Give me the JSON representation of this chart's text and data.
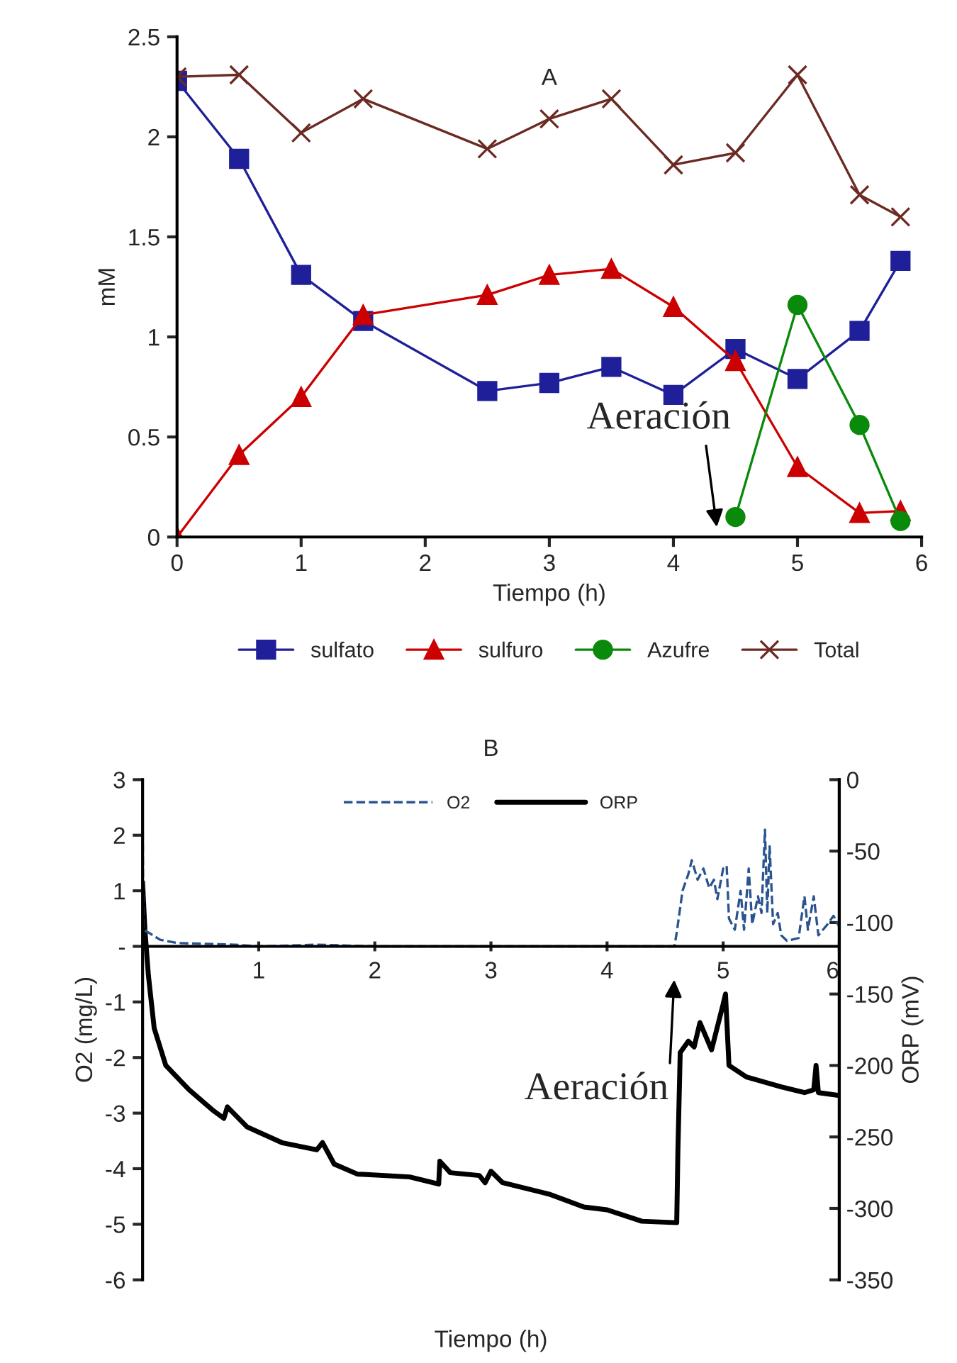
{
  "chart_data": [
    {
      "type": "line",
      "title": "A",
      "xlabel": "Tiempo (h)",
      "ylabel": "mM",
      "xlim": [
        0,
        6
      ],
      "xticks": [
        0,
        1,
        2,
        3,
        4,
        5,
        6
      ],
      "ylim": [
        0,
        2.5
      ],
      "yticks": [
        0,
        0.5,
        1,
        1.5,
        2,
        2.5
      ],
      "grid": false,
      "legend": "bottom",
      "series": [
        {
          "name": "sulfato",
          "color": "#1f1f99",
          "marker": "square",
          "x": [
            0,
            0.5,
            1,
            1.5,
            2.5,
            3,
            3.5,
            4,
            4.5,
            5,
            5.5,
            5.83
          ],
          "values": [
            2.28,
            1.89,
            1.31,
            1.08,
            0.73,
            0.77,
            0.85,
            0.71,
            0.94,
            0.79,
            1.03,
            1.38
          ]
        },
        {
          "name": "sulfuro",
          "color": "#cc0000",
          "marker": "triangle",
          "x": [
            0,
            0.5,
            1,
            1.5,
            2.5,
            3,
            3.5,
            4,
            4.5,
            5,
            5.5,
            5.83
          ],
          "values": [
            0,
            0.41,
            0.7,
            1.11,
            1.21,
            1.31,
            1.34,
            1.15,
            0.88,
            0.35,
            0.12,
            0.13
          ]
        },
        {
          "name": "Azufre",
          "color": "#0a8a0a",
          "marker": "circle",
          "x": [
            4.5,
            5,
            5.5,
            5.83
          ],
          "values": [
            0.1,
            1.16,
            0.56,
            0.08
          ]
        },
        {
          "name": "Total",
          "color": "#6b2a22",
          "marker": "cross",
          "x": [
            0,
            0.5,
            1,
            1.5,
            2.5,
            3,
            3.5,
            4,
            4.5,
            5,
            5.5,
            5.83
          ],
          "values": [
            2.3,
            2.31,
            2.02,
            2.19,
            1.94,
            2.09,
            2.19,
            1.86,
            1.92,
            2.31,
            1.71,
            1.6
          ]
        }
      ],
      "annotations": [
        "Aeración"
      ]
    },
    {
      "type": "line",
      "title": "B",
      "xlabel": "Tiempo (h)",
      "ylabel": "O2 (mg/L)",
      "y2label": "ORP (mV)",
      "xlim": [
        0,
        6
      ],
      "xticks": [
        1,
        2,
        3,
        4,
        5,
        6
      ],
      "ylim": [
        -6,
        3
      ],
      "yticks": [
        -6,
        -5,
        -4,
        -3,
        -2,
        -1,
        {
          "value": 0,
          "label": "-"
        },
        1,
        2,
        3
      ],
      "y2lim": [
        -350,
        0
      ],
      "y2ticks": [
        -350,
        -300,
        -250,
        -200,
        -150,
        -100,
        -50,
        0
      ],
      "grid": false,
      "legend": "top",
      "series": [
        {
          "name": "O2",
          "color": "#2a5490",
          "line_style": "dashed",
          "x": [
            0,
            0.005,
            0.05,
            0.15,
            0.3,
            0.8,
            1.0,
            1.5,
            2.0,
            3.0,
            4.0,
            4.58,
            4.6,
            4.65,
            4.7,
            4.73,
            4.78,
            4.83,
            4.88,
            4.92,
            4.95,
            5.0,
            5.03,
            5.05,
            5.1,
            5.15,
            5.18,
            5.22,
            5.25,
            5.3,
            5.33,
            5.36,
            5.38,
            5.4,
            5.43,
            5.47,
            5.5,
            5.55,
            5.65,
            5.7,
            5.73,
            5.78,
            5.82,
            5.9,
            5.95,
            6.0
          ],
          "values": [
            2.97,
            0.3,
            0.25,
            0.12,
            0.06,
            0.03,
            0,
            0.03,
            0,
            0,
            0,
            0,
            0.25,
            1.0,
            1.3,
            1.55,
            1.2,
            1.4,
            1.05,
            1.2,
            0.85,
            1.4,
            1.45,
            0.5,
            0.3,
            1.0,
            0.3,
            1.4,
            0.4,
            0.9,
            0.6,
            2.1,
            0.6,
            1.8,
            0.4,
            0.6,
            0.2,
            0.1,
            0.15,
            0.9,
            0.3,
            0.9,
            0.2,
            0.4,
            0.55,
            0.35
          ]
        },
        {
          "name": "ORP",
          "color": "#000000",
          "line_style": "solid",
          "axis": "y2",
          "x": [
            0,
            0.02,
            0.05,
            0.1,
            0.2,
            0.4,
            0.6,
            0.7,
            0.73,
            0.9,
            1.2,
            1.5,
            1.55,
            1.65,
            1.85,
            2.3,
            2.55,
            2.56,
            2.65,
            2.9,
            2.95,
            3.0,
            3.1,
            3.5,
            3.8,
            4.0,
            4.3,
            4.6,
            4.61,
            4.63,
            4.7,
            4.75,
            4.8,
            4.9,
            5.0,
            5.02,
            5.05,
            5.2,
            5.5,
            5.7,
            5.78,
            5.8,
            5.82,
            6.0
          ],
          "values": [
            -72,
            -105,
            -137,
            -174,
            -200,
            -217,
            -231,
            -237,
            -229,
            -243,
            -254,
            -259,
            -254,
            -269,
            -276,
            -278,
            -283,
            -267,
            -275,
            -277,
            -282,
            -274,
            -282,
            -290,
            -299,
            -301,
            -309,
            -310,
            -260,
            -191,
            -183,
            -187,
            -170,
            -189,
            -157,
            -150,
            -200,
            -208,
            -215,
            -219,
            -217,
            -200,
            -219,
            -221
          ]
        }
      ],
      "annotations": [
        "Aeración"
      ]
    }
  ]
}
